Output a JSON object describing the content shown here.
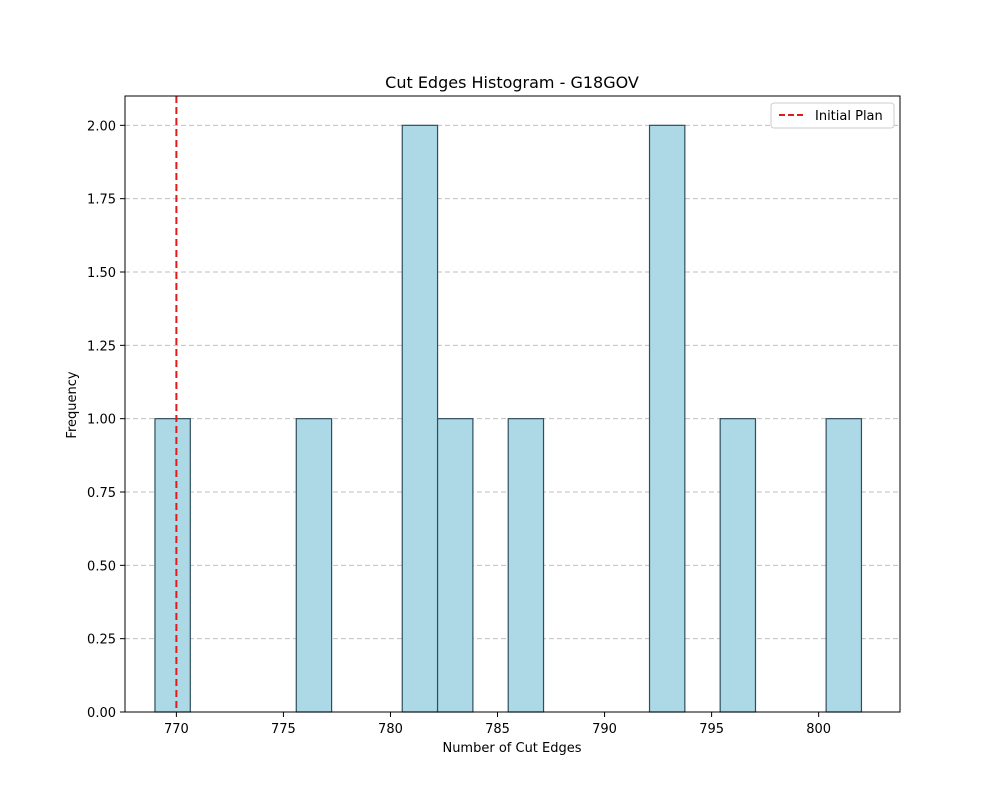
{
  "chart_data": {
    "type": "bar",
    "title": "Cut Edges Histogram - G18GOV",
    "xlabel": "Number of Cut Edges",
    "ylabel": "Frequency",
    "xlim": [
      767.6,
      803.8
    ],
    "ylim": [
      0,
      2.1
    ],
    "x_ticks": [
      770,
      775,
      780,
      785,
      790,
      795,
      800
    ],
    "x_tick_labels": [
      "770",
      "775",
      "780",
      "785",
      "790",
      "795",
      "800"
    ],
    "y_ticks": [
      0,
      0.25,
      0.5,
      0.75,
      1.0,
      1.25,
      1.5,
      1.75,
      2.0
    ],
    "y_tick_labels": [
      "0.00",
      "0.25",
      "0.50",
      "0.75",
      "1.00",
      "1.25",
      "1.50",
      "1.75",
      "2.00"
    ],
    "bins": [
      {
        "x0": 769.0,
        "x1": 770.65,
        "count": 1
      },
      {
        "x0": 775.6,
        "x1": 777.25,
        "count": 1
      },
      {
        "x0": 780.55,
        "x1": 782.2,
        "count": 2
      },
      {
        "x0": 782.2,
        "x1": 783.85,
        "count": 1
      },
      {
        "x0": 785.5,
        "x1": 787.15,
        "count": 1
      },
      {
        "x0": 792.1,
        "x1": 793.75,
        "count": 2
      },
      {
        "x0": 795.4,
        "x1": 797.05,
        "count": 1
      },
      {
        "x0": 800.35,
        "x1": 802.0,
        "count": 1
      }
    ],
    "reference_line": {
      "x": 770,
      "label": "Initial Plan",
      "color": "#e31a1c",
      "style": "dashed"
    },
    "bar_color": "#add8e6",
    "bar_edge_color": "#2f4f5f",
    "grid": "y-dashed",
    "legend": {
      "position": "top-right",
      "entries": [
        "Initial Plan"
      ]
    }
  }
}
